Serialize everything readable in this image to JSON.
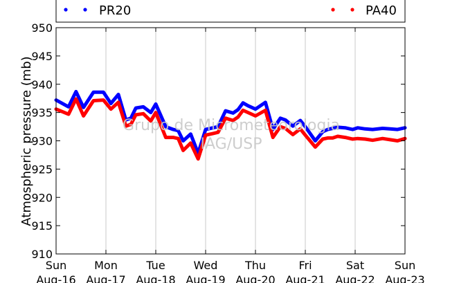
{
  "chart_data": {
    "type": "line",
    "title": "",
    "xlabel": "",
    "ylabel": "Atmospheric pressure (mb)",
    "ylim": [
      910,
      950
    ],
    "yticks": [
      910,
      915,
      920,
      925,
      930,
      935,
      940,
      945,
      950
    ],
    "x_categories": [
      {
        "day": "Sun",
        "date": "Aug-16"
      },
      {
        "day": "Mon",
        "date": "Aug-17"
      },
      {
        "day": "Tue",
        "date": "Aug-18"
      },
      {
        "day": "Wed",
        "date": "Aug-19"
      },
      {
        "day": "Thu",
        "date": "Aug-20"
      },
      {
        "day": "Fri",
        "date": "Aug-21"
      },
      {
        "day": "Sat",
        "date": "Aug-22"
      },
      {
        "day": "Sun",
        "date": "Aug-23"
      }
    ],
    "grid": true,
    "legend_placement": "top",
    "watermark": [
      "Grupo de Micrometeorologia",
      "IAG/USP"
    ],
    "series": [
      {
        "name": "PR20",
        "color": "#0000ff",
        "x": [
          0,
          0.25,
          0.4,
          0.55,
          0.75,
          0.95,
          1.1,
          1.25,
          1.4,
          1.5,
          1.6,
          1.75,
          1.9,
          2.0,
          2.2,
          2.35,
          2.45,
          2.55,
          2.7,
          2.85,
          3.0,
          3.15,
          3.25,
          3.4,
          3.55,
          3.65,
          3.75,
          3.85,
          4.0,
          4.2,
          4.35,
          4.5,
          4.6,
          4.75,
          4.9,
          5.0,
          5.2,
          5.35,
          5.45,
          5.55,
          5.65,
          5.8,
          5.95,
          6.05,
          6.2,
          6.35,
          6.55,
          6.7,
          6.85,
          7.0
        ],
        "values": [
          937.2,
          936.0,
          938.7,
          935.9,
          938.6,
          938.6,
          936.6,
          938.2,
          933.7,
          934.0,
          935.8,
          936.0,
          935.0,
          936.5,
          932.5,
          932.0,
          931.8,
          930.0,
          931.2,
          927.8,
          932.0,
          932.3,
          932.5,
          935.3,
          934.9,
          935.5,
          936.7,
          936.2,
          935.6,
          936.8,
          932.0,
          934.0,
          933.7,
          932.6,
          933.6,
          932.5,
          930.0,
          931.6,
          932.0,
          932.2,
          932.4,
          932.3,
          932.0,
          932.3,
          932.1,
          932.0,
          932.2,
          932.1,
          932.0,
          932.3
        ]
      },
      {
        "name": "PA40",
        "color": "#ff0000",
        "x": [
          0,
          0.25,
          0.4,
          0.55,
          0.75,
          0.95,
          1.1,
          1.25,
          1.4,
          1.5,
          1.6,
          1.75,
          1.9,
          2.0,
          2.2,
          2.35,
          2.45,
          2.55,
          2.7,
          2.85,
          3.0,
          3.15,
          3.25,
          3.4,
          3.55,
          3.65,
          3.75,
          3.85,
          4.0,
          4.2,
          4.35,
          4.5,
          4.6,
          4.75,
          4.9,
          5.0,
          5.2,
          5.35,
          5.45,
          5.55,
          5.65,
          5.8,
          5.95,
          6.05,
          6.2,
          6.35,
          6.55,
          6.7,
          6.85,
          7.0
        ],
        "values": [
          935.6,
          934.7,
          937.4,
          934.4,
          937.1,
          937.2,
          935.6,
          936.8,
          932.6,
          932.9,
          934.6,
          934.8,
          933.5,
          935.0,
          930.6,
          930.6,
          930.4,
          928.3,
          929.6,
          926.8,
          931.0,
          931.3,
          931.5,
          934.0,
          933.6,
          934.2,
          935.4,
          935.0,
          934.4,
          935.4,
          930.6,
          932.5,
          932.2,
          931.1,
          932.1,
          931.0,
          928.9,
          930.3,
          930.5,
          930.5,
          930.8,
          930.6,
          930.3,
          930.4,
          930.3,
          930.1,
          930.4,
          930.2,
          930.0,
          930.4
        ]
      }
    ]
  }
}
